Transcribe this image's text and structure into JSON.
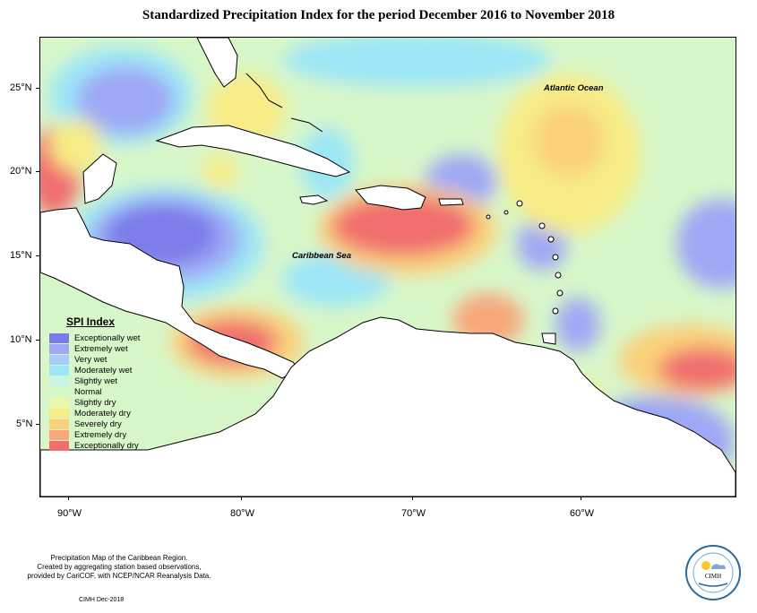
{
  "title": "Standardized Precipitation Index for the period December 2016 to November 2018",
  "map_labels": {
    "atlantic": "Atlantic Ocean",
    "caribbean": "Caribbean Sea"
  },
  "lat_ticks": [
    "25°N",
    "20°N",
    "15°N",
    "10°N",
    "5°N"
  ],
  "lon_ticks": [
    "90°W",
    "80°W",
    "70°W",
    "60°W"
  ],
  "legend": {
    "title": "SPI Index",
    "items": [
      {
        "label": "Exceptionally wet",
        "color": "#7b7bea"
      },
      {
        "label": "Extremely wet",
        "color": "#9ea8f5"
      },
      {
        "label": "Very wet",
        "color": "#a6cdfa"
      },
      {
        "label": "Moderately wet",
        "color": "#9be6f7"
      },
      {
        "label": "Slightly wet",
        "color": "#c9f5e2"
      },
      {
        "label": "Normal",
        "color": "#d6f8c5"
      },
      {
        "label": "Slightly dry",
        "color": "#eaf7a6"
      },
      {
        "label": "Moderately dry",
        "color": "#f7ec86"
      },
      {
        "label": "Severely dry",
        "color": "#fad07a"
      },
      {
        "label": "Extremely dry",
        "color": "#f7a77a"
      },
      {
        "label": "Exceptionally dry",
        "color": "#f06e6e"
      }
    ]
  },
  "footer": {
    "line1": "Precipitation Map of the Caribbean Region.",
    "line2": "Created by aggregating station based observations,",
    "line3": "provided by CariCOF, with NCEP/NCAR Reanalysis Data.",
    "credit": "CIMH Dec-2018"
  },
  "logo": {
    "text": "CIMH"
  }
}
